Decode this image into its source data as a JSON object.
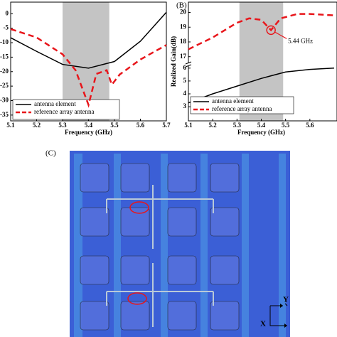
{
  "chart_data": [
    {
      "type": "line",
      "xlabel": "Frequency (GHz)",
      "xlim": [
        5.1,
        5.7
      ],
      "xticks": [
        5.1,
        5.2,
        5.3,
        5.4,
        5.5,
        5.6,
        5.7
      ],
      "ylim": [
        -37,
        4
      ],
      "yticks": [
        0,
        -5,
        -10,
        -15,
        -20,
        -25,
        -30,
        -35
      ],
      "shaded_region": [
        5.3,
        5.48
      ],
      "legend": "lower left",
      "series": [
        {
          "name": "antenna element",
          "color": "#000000",
          "style": "solid",
          "x": [
            5.1,
            5.2,
            5.3,
            5.4,
            5.5,
            5.6,
            5.7
          ],
          "values": [
            -8.3,
            -13,
            -17.5,
            -18.8,
            -16.5,
            -9.5,
            0.5
          ]
        },
        {
          "name": "reference array antenna",
          "color": "#e8161b",
          "style": "dashed",
          "x": [
            5.1,
            5.2,
            5.3,
            5.35,
            5.4,
            5.43,
            5.47,
            5.49,
            5.52,
            5.6,
            5.7
          ],
          "values": [
            -5.3,
            -8.2,
            -14,
            -19.5,
            -31.5,
            -20.8,
            -19.5,
            -24.5,
            -21,
            -15.8,
            -10.8
          ]
        }
      ]
    },
    {
      "type": "line",
      "panel_label": "(B)",
      "xlabel": "Frequency (GHz)",
      "ylabel": "Realized Gain(dB)",
      "xlim": [
        5.1,
        5.7
      ],
      "xticks": [
        5.1,
        5.2,
        5.3,
        5.4,
        5.5,
        5.6
      ],
      "ylim": [
        1.9,
        6.1
      ],
      "yticks": [
        3,
        4,
        5,
        6
      ],
      "y2lim": [
        16.6,
        20.7
      ],
      "y2ticks": [
        17,
        18,
        19,
        20
      ],
      "shaded_region": [
        5.31,
        5.49
      ],
      "legend": "lower left",
      "annotation": {
        "text": "5.44 GHz",
        "x": 5.44,
        "y": 18.8
      },
      "series": [
        {
          "name": "antenna element",
          "color": "#000000",
          "style": "solid",
          "x": [
            5.1,
            5.2,
            5.3,
            5.4,
            5.5,
            5.6,
            5.7
          ],
          "values": [
            3.3,
            4.0,
            4.6,
            5.2,
            5.7,
            5.9,
            6.0
          ]
        },
        {
          "name": "reference array antenna",
          "color": "#e8161b",
          "style": "dashed",
          "axis": "y2",
          "x": [
            5.1,
            5.2,
            5.3,
            5.35,
            5.4,
            5.44,
            5.48,
            5.55,
            5.6,
            5.7
          ],
          "values": [
            17.5,
            18.3,
            19.3,
            19.6,
            19.5,
            18.8,
            19.6,
            19.9,
            19.9,
            19.8
          ]
        }
      ]
    }
  ],
  "figure_c": {
    "panel_label": "(C)",
    "axis_y": "Y",
    "axis_x": "X"
  }
}
